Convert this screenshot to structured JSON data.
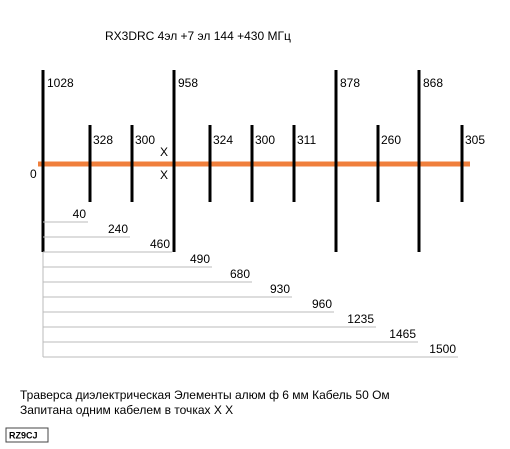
{
  "title": "RX3DRC  4эл +7 эл  144 +430 МГц",
  "origin_label": "0",
  "feed_marks": [
    "X",
    "X"
  ],
  "elements": [
    1028,
    328,
    300,
    958,
    324,
    300,
    311,
    878,
    260,
    868,
    305
  ],
  "distances": [
    40,
    240,
    460,
    490,
    680,
    930,
    960,
    1235,
    1465,
    1500
  ],
  "notes": [
    "Траверса диэлектрическая Элементы алюм ф 6  мм Кабель 50 Ом",
    "Запитана одним кабелем в точках X X"
  ],
  "logo": "RZ9CJ"
}
